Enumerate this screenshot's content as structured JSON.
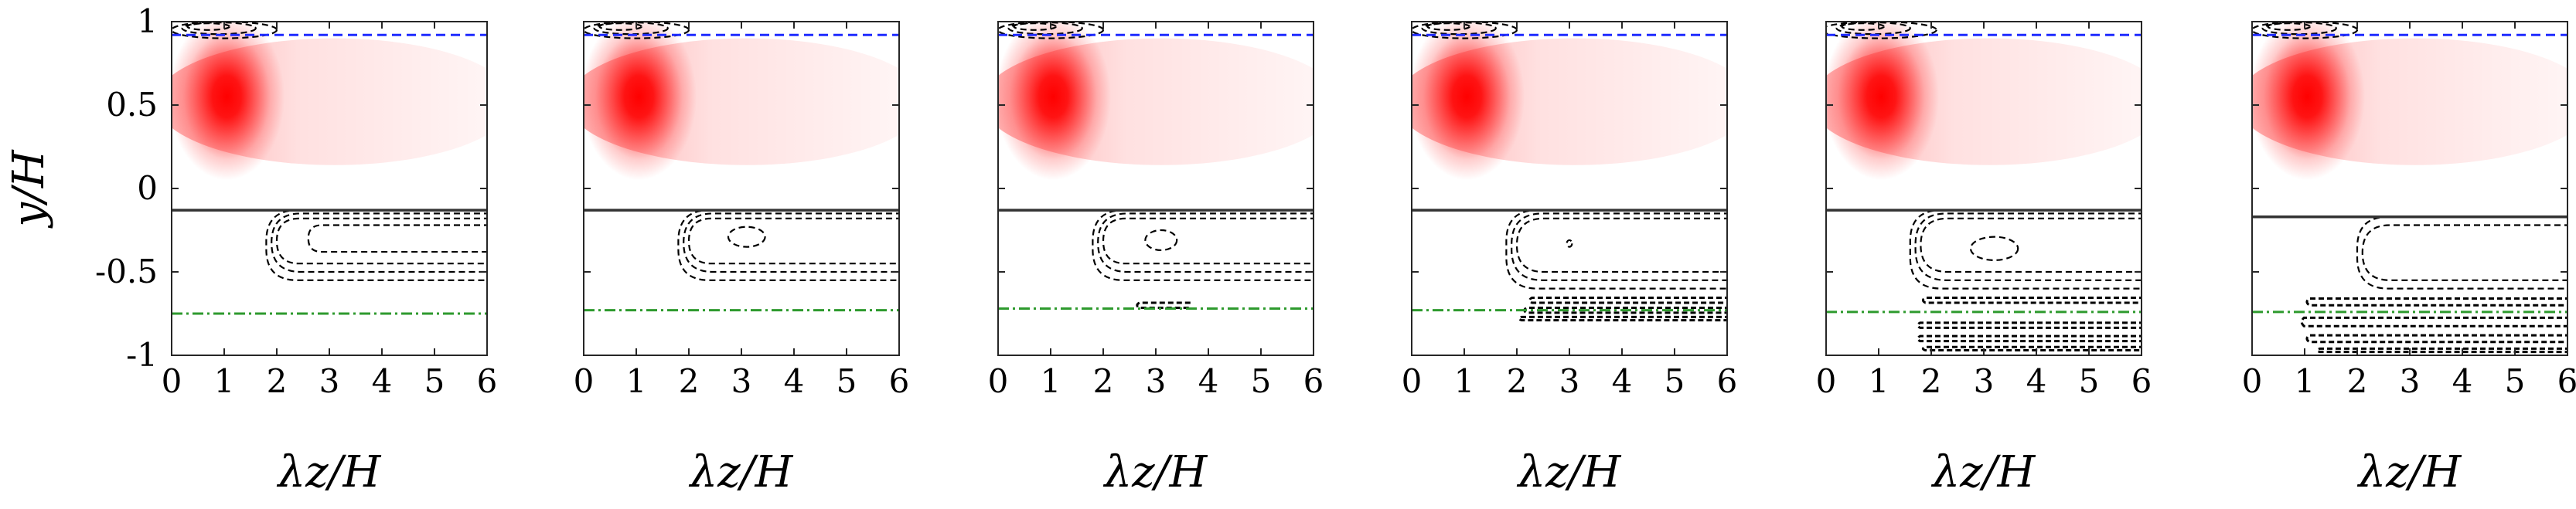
{
  "chart_data": {
    "type": "heatmap",
    "xlabel": "λz/H",
    "ylabel": "y/H",
    "xlim": [
      0,
      6
    ],
    "ylim": [
      -1,
      1
    ],
    "x_ticks": [
      0,
      1,
      2,
      3,
      4,
      5,
      6
    ],
    "y_ticks": [
      {
        "value": 1,
        "label": "1"
      },
      {
        "value": 0.5,
        "label": "0.5"
      },
      {
        "value": 0,
        "label": "0"
      },
      {
        "value": -0.5,
        "label": "-0.5"
      },
      {
        "value": -1,
        "label": "-1"
      }
    ],
    "colors": {
      "heat": "#ff0000",
      "blue_line": "#1f2bff",
      "green_line": "#2e9a2e",
      "solid_line": "#333333",
      "contour": "#000000"
    },
    "panels": [
      {
        "heat_peak": {
          "x": 0.9,
          "y": 0.6
        },
        "blue_dashed_y": 0.92,
        "solid_y": -0.13,
        "green_dashdot_y": -0.75,
        "upper_contours": [
          {
            "cx": 1.0,
            "cy": 0.95,
            "rx": 1.0,
            "ry": 0.05
          },
          {
            "cx": 0.9,
            "cy": 0.96,
            "rx": 0.7,
            "ry": 0.035
          },
          {
            "cx": 0.7,
            "cy": 0.97,
            "rx": 0.4,
            "ry": 0.02
          }
        ],
        "lower_contours": [
          {
            "x0": 1.8,
            "x1": 6.0,
            "ytop": -0.13,
            "ybot": -0.55
          },
          {
            "x0": 1.9,
            "x1": 6.0,
            "ytop": -0.15,
            "ybot": -0.5
          },
          {
            "x0": 2.0,
            "x1": 6.0,
            "ytop": -0.18,
            "ybot": -0.45
          },
          {
            "x0": 2.6,
            "x1": 6.0,
            "ytop": -0.22,
            "ybot": -0.38
          }
        ],
        "inner_contours": [],
        "near_wall_contours": []
      },
      {
        "heat_peak": {
          "x": 0.9,
          "y": 0.6
        },
        "blue_dashed_y": 0.92,
        "solid_y": -0.13,
        "green_dashdot_y": -0.73,
        "upper_contours": [
          {
            "cx": 1.0,
            "cy": 0.95,
            "rx": 1.0,
            "ry": 0.05
          },
          {
            "cx": 0.9,
            "cy": 0.96,
            "rx": 0.7,
            "ry": 0.035
          },
          {
            "cx": 0.7,
            "cy": 0.97,
            "rx": 0.4,
            "ry": 0.02
          }
        ],
        "lower_contours": [
          {
            "x0": 1.8,
            "x1": 6.0,
            "ytop": -0.13,
            "ybot": -0.55
          },
          {
            "x0": 1.9,
            "x1": 6.0,
            "ytop": -0.15,
            "ybot": -0.5
          },
          {
            "x0": 2.0,
            "x1": 6.0,
            "ytop": -0.18,
            "ybot": -0.45
          }
        ],
        "inner_contours": [
          {
            "cx": 3.1,
            "cy": -0.29,
            "rx": 0.35,
            "ry": 0.06
          }
        ],
        "near_wall_contours": []
      },
      {
        "heat_peak": {
          "x": 0.9,
          "y": 0.6
        },
        "blue_dashed_y": 0.92,
        "solid_y": -0.13,
        "green_dashdot_y": -0.72,
        "upper_contours": [
          {
            "cx": 1.0,
            "cy": 0.95,
            "rx": 1.0,
            "ry": 0.05
          },
          {
            "cx": 0.9,
            "cy": 0.96,
            "rx": 0.7,
            "ry": 0.035
          },
          {
            "cx": 0.7,
            "cy": 0.97,
            "rx": 0.4,
            "ry": 0.02
          }
        ],
        "lower_contours": [
          {
            "x0": 1.8,
            "x1": 6.0,
            "ytop": -0.13,
            "ybot": -0.55
          },
          {
            "x0": 1.9,
            "x1": 6.0,
            "ytop": -0.15,
            "ybot": -0.5
          },
          {
            "x0": 2.0,
            "x1": 6.0,
            "ytop": -0.18,
            "ybot": -0.45
          }
        ],
        "inner_contours": [
          {
            "cx": 3.1,
            "cy": -0.31,
            "rx": 0.3,
            "ry": 0.06
          }
        ],
        "near_wall_contours": [
          {
            "x0": 2.6,
            "x1": 3.6,
            "y": -0.7,
            "h": 0.03
          }
        ]
      },
      {
        "heat_peak": {
          "x": 0.9,
          "y": 0.6
        },
        "blue_dashed_y": 0.92,
        "solid_y": -0.13,
        "green_dashdot_y": -0.73,
        "upper_contours": [
          {
            "cx": 1.0,
            "cy": 0.95,
            "rx": 1.0,
            "ry": 0.05
          },
          {
            "cx": 0.9,
            "cy": 0.96,
            "rx": 0.7,
            "ry": 0.035
          },
          {
            "cx": 0.7,
            "cy": 0.97,
            "rx": 0.4,
            "ry": 0.02
          }
        ],
        "lower_contours": [
          {
            "x0": 1.8,
            "x1": 6.0,
            "ytop": -0.13,
            "ybot": -0.6
          },
          {
            "x0": 1.9,
            "x1": 6.0,
            "ytop": -0.15,
            "ybot": -0.55
          },
          {
            "x0": 2.0,
            "x1": 6.0,
            "ytop": -0.18,
            "ybot": -0.5
          }
        ],
        "inner_contours": [
          {
            "cx": 3.0,
            "cy": -0.33,
            "rx": 0.05,
            "ry": 0.02
          }
        ],
        "near_wall_contours": [
          {
            "x0": 2.2,
            "x1": 6.0,
            "y": -0.67,
            "h": 0.03
          },
          {
            "x0": 2.1,
            "x1": 6.0,
            "y": -0.73,
            "h": 0.03
          },
          {
            "x0": 2.0,
            "x1": 6.0,
            "y": -0.78,
            "h": 0.02
          }
        ]
      },
      {
        "heat_peak": {
          "x": 0.9,
          "y": 0.6
        },
        "blue_dashed_y": 0.92,
        "solid_y": -0.13,
        "green_dashdot_y": -0.74,
        "upper_contours": [
          {
            "cx": 1.0,
            "cy": 0.95,
            "rx": 1.1,
            "ry": 0.05
          },
          {
            "cx": 0.9,
            "cy": 0.96,
            "rx": 0.7,
            "ry": 0.035
          },
          {
            "cx": 0.7,
            "cy": 0.97,
            "rx": 0.4,
            "ry": 0.02
          }
        ],
        "lower_contours": [
          {
            "x0": 1.6,
            "x1": 6.0,
            "ytop": -0.13,
            "ybot": -0.6
          },
          {
            "x0": 1.7,
            "x1": 6.0,
            "ytop": -0.15,
            "ybot": -0.55
          },
          {
            "x0": 1.8,
            "x1": 6.0,
            "ytop": -0.18,
            "ybot": -0.5
          }
        ],
        "inner_contours": [
          {
            "cx": 3.2,
            "cy": -0.36,
            "rx": 0.45,
            "ry": 0.07
          }
        ],
        "near_wall_contours": [
          {
            "x0": 1.8,
            "x1": 6.0,
            "y": -0.67,
            "h": 0.03
          },
          {
            "x0": 1.7,
            "x1": 6.0,
            "y": -0.82,
            "h": 0.03
          },
          {
            "x0": 1.7,
            "x1": 6.0,
            "y": -0.9,
            "h": 0.03
          },
          {
            "x0": 1.8,
            "x1": 6.0,
            "y": -0.96,
            "h": 0.02
          }
        ]
      },
      {
        "heat_peak": {
          "x": 0.9,
          "y": 0.6
        },
        "blue_dashed_y": 0.92,
        "solid_y": -0.17,
        "green_dashdot_y": -0.74,
        "upper_contours": [
          {
            "cx": 1.0,
            "cy": 0.95,
            "rx": 1.0,
            "ry": 0.05
          },
          {
            "cx": 0.9,
            "cy": 0.96,
            "rx": 0.7,
            "ry": 0.035
          },
          {
            "cx": 0.7,
            "cy": 0.97,
            "rx": 0.4,
            "ry": 0.02
          }
        ],
        "lower_contours": [
          {
            "x0": 2.0,
            "x1": 6.0,
            "ytop": -0.17,
            "ybot": -0.6
          },
          {
            "x0": 2.1,
            "x1": 6.0,
            "ytop": -0.22,
            "ybot": -0.55
          }
        ],
        "inner_contours": [],
        "near_wall_contours": [
          {
            "x0": 1.0,
            "x1": 6.0,
            "y": -0.68,
            "h": 0.04
          },
          {
            "x0": 0.9,
            "x1": 6.0,
            "y": -0.8,
            "h": 0.05
          },
          {
            "x0": 1.0,
            "x1": 6.0,
            "y": -0.9,
            "h": 0.04
          },
          {
            "x0": 1.2,
            "x1": 6.0,
            "y": -0.97,
            "h": 0.02
          }
        ]
      }
    ]
  }
}
